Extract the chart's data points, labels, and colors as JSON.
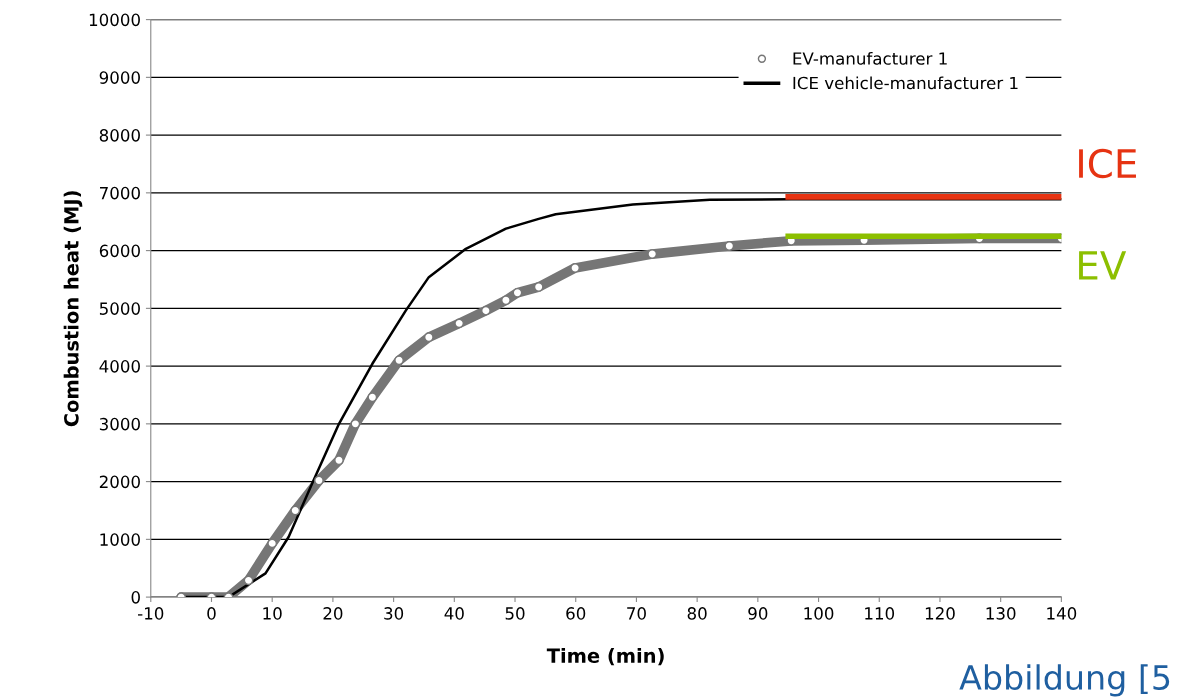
{
  "chart_data": {
    "type": "line",
    "xlabel": "Time (min)",
    "ylabel": "Combustion heat (MJ)",
    "xlim": [
      -10,
      140
    ],
    "xticks": [
      -10,
      0,
      10,
      20,
      30,
      40,
      50,
      60,
      70,
      80,
      90,
      100,
      110,
      120,
      130,
      140
    ],
    "ylim": [
      0,
      10000
    ],
    "yticks": [
      0,
      1000,
      2000,
      3000,
      4000,
      5000,
      6000,
      7000,
      8000,
      9000,
      10000
    ],
    "grid": "y",
    "legend": "top right",
    "series": [
      {
        "name": "EV-manufacturer 1",
        "color": "#767676",
        "marker": "circle",
        "x": [
          -5,
          0,
          2.8,
          6.1,
          10,
          13.8,
          17.7,
          21,
          23.7,
          26.5,
          30.9,
          35.8,
          40.8,
          45.2,
          48.5,
          50.4,
          53.9,
          59.9,
          72.6,
          85.3,
          95.5,
          107.5,
          126.5,
          140
        ],
        "values": [
          0,
          0,
          0,
          290,
          930,
          1500,
          2020,
          2370,
          3000,
          3460,
          4100,
          4500,
          4740,
          4960,
          5140,
          5270,
          5370,
          5700,
          5940,
          6080,
          6170,
          6180,
          6210,
          6210
        ]
      },
      {
        "name": "ICE vehicle-manufacturer 1",
        "color": "#000000",
        "marker": "none",
        "x": [
          -5,
          0,
          2.8,
          8.9,
          12.7,
          16.6,
          21,
          26.5,
          32,
          35.8,
          41.9,
          48.5,
          53.9,
          56.7,
          69.4,
          82.1,
          95.5,
          140
        ],
        "values": [
          0,
          0,
          0,
          410,
          1040,
          1970,
          3000,
          4040,
          4960,
          5540,
          6030,
          6380,
          6550,
          6630,
          6800,
          6880,
          6890,
          6890
        ]
      },
      {
        "color": "#e63312",
        "marker": "none",
        "x": [
          95,
          140
        ],
        "values": [
          6930,
          6930
        ]
      },
      {
        "color": "#8cbf00",
        "marker": "none",
        "x": [
          95,
          140
        ],
        "values": [
          6250,
          6250
        ]
      }
    ],
    "annotations": [
      {
        "text": "ICE",
        "x": 140,
        "y": 6930
      },
      {
        "text": "EV",
        "x": 140,
        "y": 6250
      },
      "Abbildung [5"
    ]
  }
}
